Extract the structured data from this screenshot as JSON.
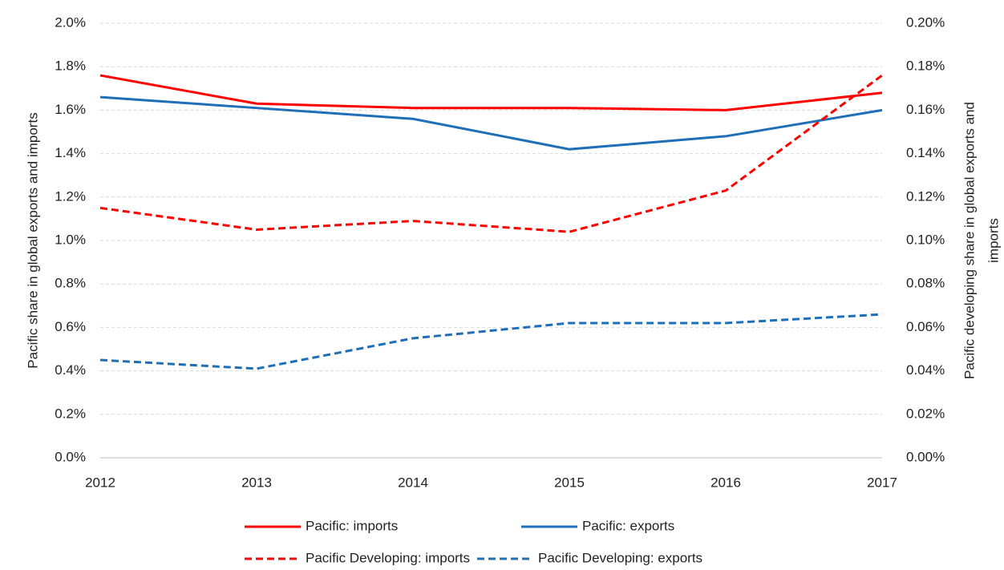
{
  "chart_data": {
    "type": "line",
    "ylabel": "Pacific share in global exports and imports",
    "y2label": [
      "Pacific developing share in global exports and",
      "imports"
    ],
    "categories": [
      "2012",
      "2013",
      "2014",
      "2015",
      "2016",
      "2017"
    ],
    "ylim": [
      0,
      2.0
    ],
    "yticks": [
      {
        "value": 0,
        "label": "0.0%"
      },
      {
        "value": 0.2,
        "label": "0.2%"
      },
      {
        "value": 0.4,
        "label": "0.4%"
      },
      {
        "value": 0.6,
        "label": "0.6%"
      },
      {
        "value": 0.8,
        "label": "0.8%"
      },
      {
        "value": 1.0,
        "label": "1.0%"
      },
      {
        "value": 1.2,
        "label": "1.2%"
      },
      {
        "value": 1.4,
        "label": "1.4%"
      },
      {
        "value": 1.6,
        "label": "1.6%"
      },
      {
        "value": 1.8,
        "label": "1.8%"
      },
      {
        "value": 2.0,
        "label": "2.0%"
      }
    ],
    "y2lim": [
      0,
      0.2
    ],
    "y2ticks": [
      {
        "value": 0,
        "label": "0.00%"
      },
      {
        "value": 0.02,
        "label": "0.02%"
      },
      {
        "value": 0.04,
        "label": "0.04%"
      },
      {
        "value": 0.06,
        "label": "0.06%"
      },
      {
        "value": 0.08,
        "label": "0.08%"
      },
      {
        "value": 0.1,
        "label": "0.10%"
      },
      {
        "value": 0.12,
        "label": "0.12%"
      },
      {
        "value": 0.14,
        "label": "0.14%"
      },
      {
        "value": 0.16,
        "label": "0.16%"
      },
      {
        "value": 0.18,
        "label": "0.18%"
      },
      {
        "value": 0.2,
        "label": "0.20%"
      }
    ],
    "grid": true,
    "legend": "bottom",
    "series": [
      {
        "name": "Pacific: imports",
        "color": "#ff0000",
        "style": "solid",
        "values": [
          1.76,
          1.63,
          1.61,
          1.61,
          1.6,
          1.68
        ]
      },
      {
        "name": "Pacific: exports",
        "color": "#1f6fb8",
        "style": "solid",
        "values": [
          1.66,
          1.61,
          1.56,
          1.42,
          1.48,
          1.6
        ]
      },
      {
        "name": "Pacific Developing: imports",
        "color": "#ff0000",
        "style": "dashed",
        "axis": "y2",
        "values": [
          0.115,
          0.105,
          0.109,
          0.104,
          0.123,
          0.176
        ]
      },
      {
        "name": "Pacific Developing: exports",
        "color": "#1f6fb8",
        "style": "dashed",
        "axis": "y2",
        "values": [
          0.045,
          0.041,
          0.055,
          0.062,
          0.062,
          0.066
        ]
      }
    ]
  }
}
